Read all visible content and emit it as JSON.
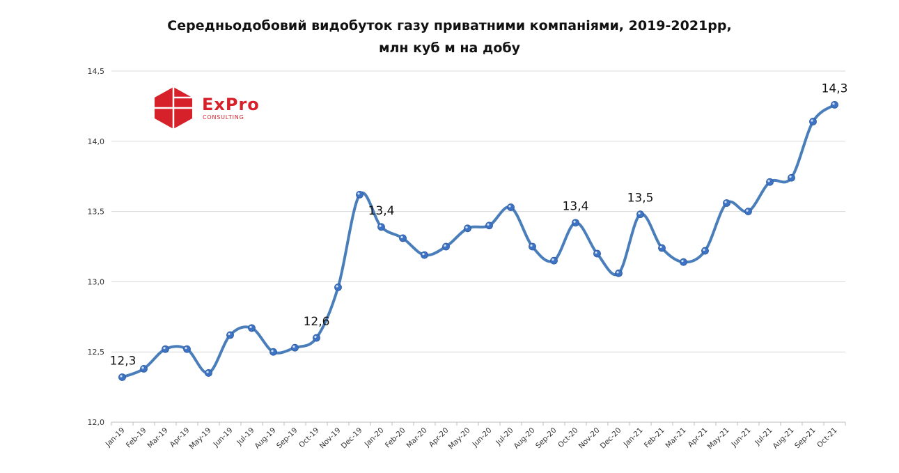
{
  "chart_data": {
    "type": "line",
    "title_line1": "Середньодобовий видобуток газу приватними компаніями, 2019-2021рр,",
    "title_line2": "млн куб м на добу",
    "categories": [
      "Jan-19",
      "Feb-19",
      "Mar-19",
      "Apr-19",
      "May-19",
      "Jun-19",
      "Jul-19",
      "Aug-19",
      "Sep-19",
      "Oct-19",
      "Nov-19",
      "Dec-19",
      "Jan-20",
      "Feb-20",
      "Mar-20",
      "Apr-20",
      "May-20",
      "Jun-20",
      "Jul-20",
      "Aug-20",
      "Sep-20",
      "Oct-20",
      "Nov-20",
      "Dec-20",
      "Jan-21",
      "Feb-21",
      "Mar-21",
      "Apr-21",
      "May-21",
      "Jun-21",
      "Jul-21",
      "Aug-21",
      "Sep-21",
      "Oct-21"
    ],
    "series": [
      {
        "values": [
          12.32,
          12.38,
          12.52,
          12.52,
          12.35,
          12.62,
          12.67,
          12.5,
          12.53,
          12.6,
          12.96,
          13.62,
          13.39,
          13.31,
          13.19,
          13.25,
          13.38,
          13.4,
          13.53,
          13.25,
          13.15,
          13.42,
          13.2,
          13.06,
          13.48,
          13.24,
          13.14,
          13.22,
          13.56,
          13.5,
          13.71,
          13.74,
          14.14,
          14.26
        ]
      }
    ],
    "data_labels": [
      {
        "index": 0,
        "text": "12,3"
      },
      {
        "index": 9,
        "text": "12,6"
      },
      {
        "index": 12,
        "text": "13,4"
      },
      {
        "index": 21,
        "text": "13,4"
      },
      {
        "index": 24,
        "text": "13,5"
      },
      {
        "index": 33,
        "text": "14,3"
      }
    ],
    "y_ticks": [
      "12,0",
      "12,5",
      "13,0",
      "13,5",
      "14,0",
      "14,5"
    ],
    "ylim": [
      12.0,
      14.5
    ],
    "grid": true,
    "line_color": "#4a7ebb",
    "marker_color": "#3e73c4"
  },
  "logo": {
    "name": "ExPro",
    "subtitle": "CONSULTING",
    "color": "#d7212a"
  }
}
